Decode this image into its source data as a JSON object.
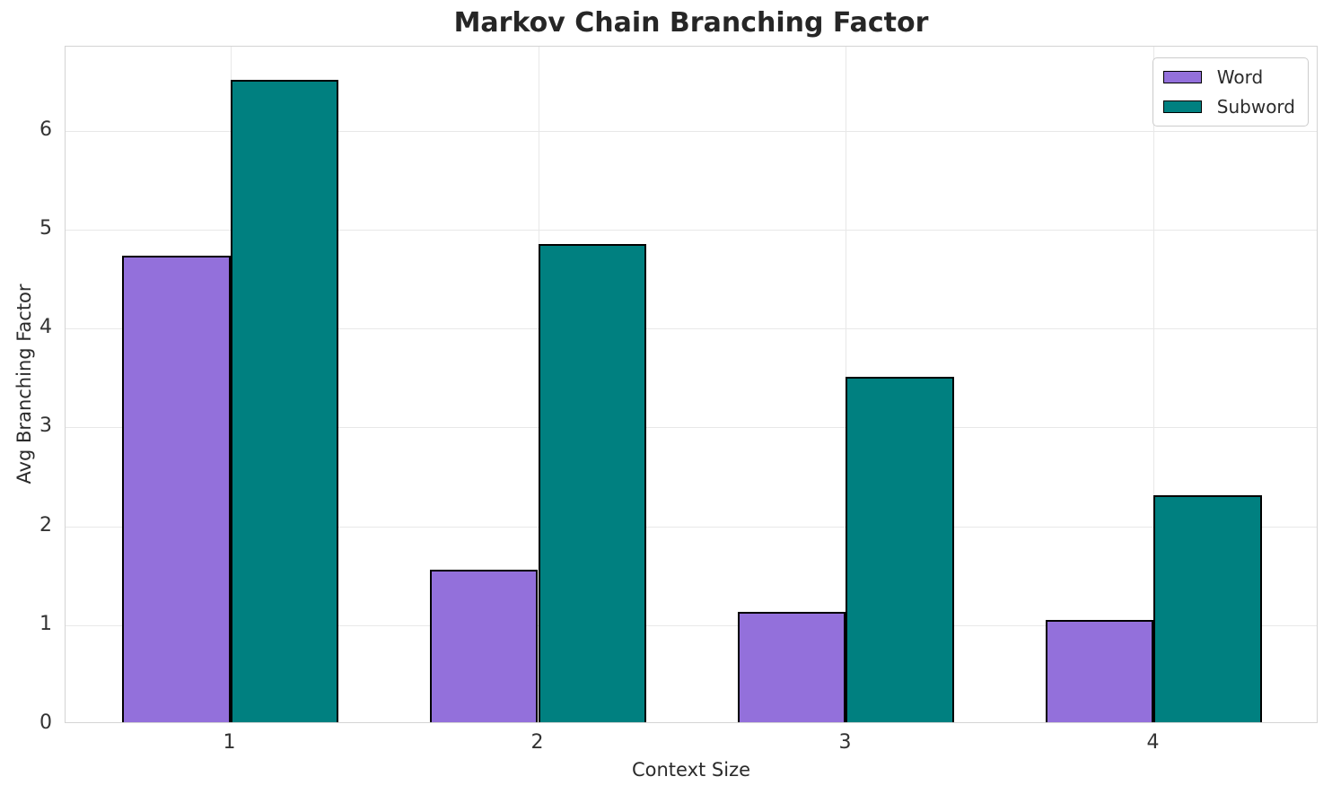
{
  "chart_data": {
    "type": "bar",
    "title": "Markov Chain Branching Factor",
    "xlabel": "Context Size",
    "ylabel": "Avg Branching Factor",
    "categories": [
      "1",
      "2",
      "3",
      "4"
    ],
    "series": [
      {
        "name": "Word",
        "color": "#9370DB",
        "values": [
          4.72,
          1.54,
          1.12,
          1.03
        ]
      },
      {
        "name": "Subword",
        "color": "#008080",
        "values": [
          6.5,
          4.84,
          3.49,
          2.3
        ]
      }
    ],
    "ylim": [
      0,
      6.85
    ],
    "yticks": [
      0,
      1,
      2,
      3,
      4,
      5,
      6
    ],
    "grid": true,
    "legend_position": "upper right",
    "bar_edge_color": "#000000",
    "grid_color": "#e8e8e8",
    "axis_border_color": "#d4d4d4",
    "background_color": "#ffffff",
    "text_color": "#2b2b2b"
  }
}
